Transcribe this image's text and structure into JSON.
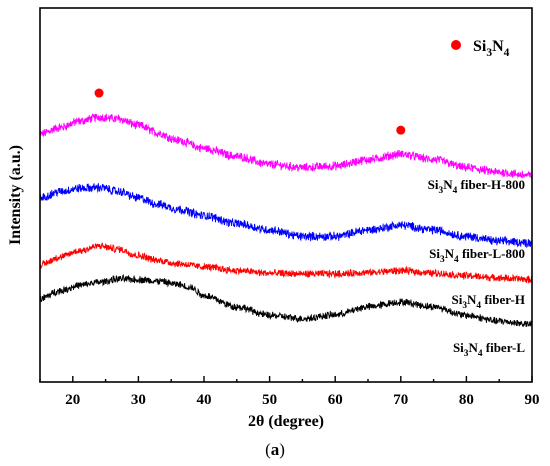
{
  "chart_data": {
    "type": "line",
    "xlabel": "2θ (degree)",
    "ylabel": "Intensity (a.u.)",
    "xlim": [
      15,
      90
    ],
    "x_ticks": [
      "20",
      "30",
      "40",
      "50",
      "60",
      "70",
      "80",
      "90"
    ],
    "y_ticks_shown": false,
    "legend": {
      "marker": "red-dot",
      "label_base": "Si",
      "label_sub": "3",
      "label_mid": "N",
      "label_sub2": "4",
      "position": "top-right"
    },
    "markers": [
      {
        "x": 24,
        "series": "top",
        "color": "#ff0000"
      },
      {
        "x": 70,
        "series": "top",
        "color": "#ff0000"
      }
    ],
    "series": [
      {
        "color": "#ff00ff",
        "label": null,
        "offset": 4.0,
        "points": [
          [
            15,
            1.25
          ],
          [
            18,
            1.45
          ],
          [
            21,
            1.65
          ],
          [
            24,
            1.78
          ],
          [
            27,
            1.72
          ],
          [
            30,
            1.52
          ],
          [
            33,
            1.28
          ],
          [
            36,
            1.05
          ],
          [
            40,
            0.8
          ],
          [
            45,
            0.55
          ],
          [
            50,
            0.3
          ],
          [
            55,
            0.2
          ],
          [
            60,
            0.25
          ],
          [
            65,
            0.45
          ],
          [
            70,
            0.62
          ],
          [
            75,
            0.45
          ],
          [
            80,
            0.2
          ],
          [
            85,
            0.05
          ],
          [
            90,
            -0.05
          ]
        ],
        "noise": 0.12
      },
      {
        "color": "#0000ff",
        "label": {
          "base": "Si",
          "sub": "3",
          "rest": "N",
          "sub2": "4",
          "suffix": " fiber-H-800"
        },
        "offset": 2.6,
        "points": [
          [
            15,
            0.65
          ],
          [
            18,
            0.85
          ],
          [
            21,
            0.95
          ],
          [
            24,
            0.98
          ],
          [
            27,
            0.85
          ],
          [
            30,
            0.65
          ],
          [
            33,
            0.45
          ],
          [
            36,
            0.3
          ],
          [
            40,
            0.1
          ],
          [
            45,
            -0.15
          ],
          [
            50,
            -0.35
          ],
          [
            55,
            -0.55
          ],
          [
            60,
            -0.55
          ],
          [
            65,
            -0.35
          ],
          [
            70,
            -0.2
          ],
          [
            75,
            -0.35
          ],
          [
            80,
            -0.55
          ],
          [
            85,
            -0.7
          ],
          [
            90,
            -0.75
          ]
        ],
        "noise": 0.12
      },
      {
        "color": "#ff0000",
        "label": {
          "base": "Si",
          "sub": "3",
          "rest": "N",
          "sub2": "4",
          "suffix": " fiber-L-800"
        },
        "offset": 1.2,
        "points": [
          [
            15,
            -0.05
          ],
          [
            18,
            0.2
          ],
          [
            21,
            0.4
          ],
          [
            24,
            0.55
          ],
          [
            27,
            0.45
          ],
          [
            30,
            0.25
          ],
          [
            33,
            0.1
          ],
          [
            36,
            0.0
          ],
          [
            40,
            -0.1
          ],
          [
            45,
            -0.22
          ],
          [
            50,
            -0.3
          ],
          [
            55,
            -0.32
          ],
          [
            60,
            -0.32
          ],
          [
            65,
            -0.28
          ],
          [
            70,
            -0.22
          ],
          [
            75,
            -0.3
          ],
          [
            80,
            -0.38
          ],
          [
            85,
            -0.45
          ],
          [
            90,
            -0.5
          ]
        ],
        "noise": 0.1
      },
      {
        "color": "#000000",
        "label": {
          "base": "Si",
          "sub": "3",
          "rest": "N",
          "sub2": "4",
          "suffix": " fiber-H"
        },
        "offset": 0.0,
        "points": [
          [
            15,
            0.1
          ],
          [
            18,
            0.35
          ],
          [
            21,
            0.52
          ],
          [
            24,
            0.62
          ],
          [
            27,
            0.72
          ],
          [
            30,
            0.7
          ],
          [
            33,
            0.65
          ],
          [
            36,
            0.55
          ],
          [
            38,
            0.45
          ],
          [
            40,
            0.2
          ],
          [
            45,
            -0.15
          ],
          [
            50,
            -0.42
          ],
          [
            55,
            -0.52
          ],
          [
            60,
            -0.4
          ],
          [
            65,
            -0.15
          ],
          [
            70,
            0.0
          ],
          [
            75,
            -0.15
          ],
          [
            80,
            -0.42
          ],
          [
            85,
            -0.6
          ],
          [
            90,
            -0.7
          ]
        ],
        "noise": 0.1
      }
    ],
    "extra_label": {
      "base": "Si",
      "sub": "3",
      "rest": "N",
      "sub2": "4",
      "suffix": " fiber-L"
    }
  },
  "caption": {
    "open": "(",
    "letter": "a",
    "close": ")"
  }
}
